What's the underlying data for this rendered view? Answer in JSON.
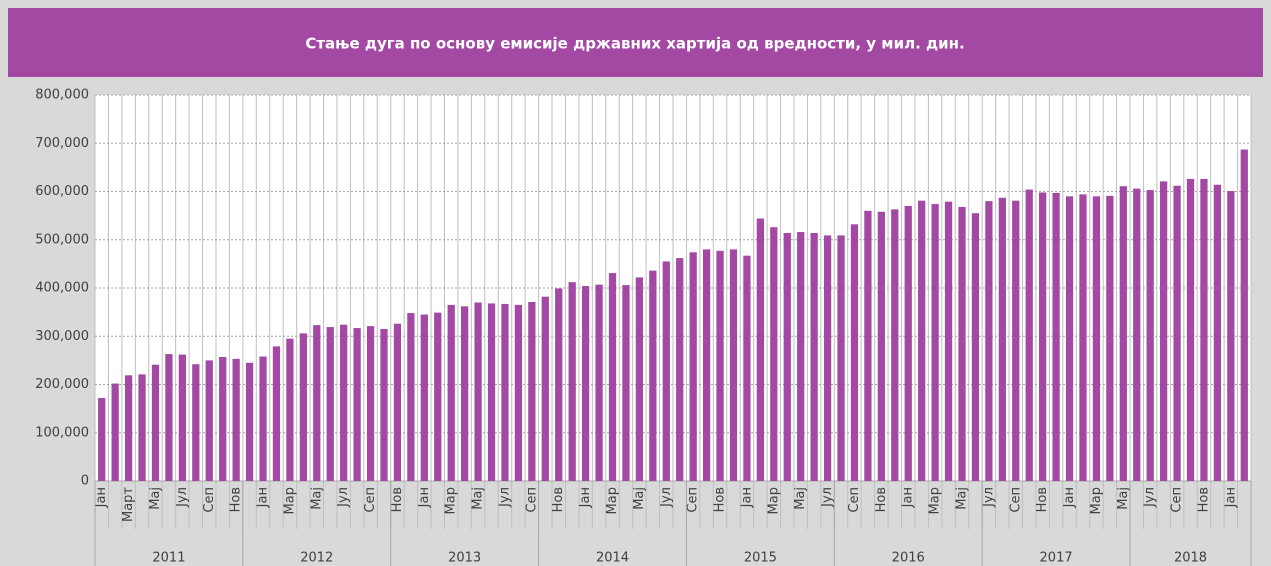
{
  "chart_data": {
    "type": "bar",
    "title": "Стање дуга по основу емисије државних хартија од вредности, у мил. дин.",
    "categories": [
      "Јан",
      null,
      "Март",
      null,
      "Мај",
      null,
      "Јул",
      null,
      "Сеп",
      null,
      "Нов",
      null,
      "Јан",
      null,
      "Мар",
      null,
      "Мај",
      null,
      "Јул",
      null,
      "Сеп",
      null,
      "Нов",
      null,
      "Јан",
      null,
      "Мар",
      null,
      "Мај",
      null,
      "Јул",
      null,
      "Сеп",
      null,
      "Нов",
      null,
      "Јан",
      null,
      "Мар",
      null,
      "Мај",
      null,
      "Јул",
      null,
      "Сеп",
      null,
      "Нов",
      null,
      "Јан",
      null,
      "Мар",
      null,
      "Мај",
      null,
      "Јул",
      null,
      "Сеп",
      null,
      "Нов",
      null,
      "Јан",
      null,
      "Мар",
      null,
      "Мај",
      null,
      "Јул",
      null,
      "Сеп",
      null,
      "Нов",
      null,
      "Јан",
      null,
      "Мар",
      null,
      "Мај",
      null,
      "Јул",
      null,
      "Сеп",
      null,
      "Нов",
      null,
      "Јан",
      null
    ],
    "years": [
      "2011",
      "2012",
      "2013",
      "2014",
      "2015",
      "2016",
      "2017",
      "2018"
    ],
    "values": [
      172000,
      202000,
      219000,
      221000,
      241000,
      263000,
      262000,
      242000,
      250000,
      257000,
      253000,
      245000,
      258000,
      279000,
      295000,
      306000,
      323000,
      319000,
      324000,
      317000,
      321000,
      315000,
      326000,
      348000,
      345000,
      349000,
      365000,
      362000,
      370000,
      368000,
      367000,
      365000,
      371000,
      382000,
      399000,
      412000,
      404000,
      407000,
      431000,
      406000,
      422000,
      436000,
      455000,
      462000,
      474000,
      480000,
      477000,
      480000,
      467000,
      544000,
      526000,
      514000,
      516000,
      514000,
      509000,
      509000,
      532000,
      560000,
      558000,
      563000,
      570000,
      581000,
      574000,
      579000,
      568000,
      555000,
      580000,
      587000,
      581000,
      604000,
      598000,
      597000,
      590000,
      594000,
      590000,
      591000,
      611000,
      606000,
      603000,
      621000,
      612000,
      626000,
      626000,
      614000,
      601000,
      687000
    ],
    "color": "#a349a4",
    "ylim": [
      0,
      800000
    ],
    "yticks": [
      0,
      {
        "value": 100000,
        "label": "100,000"
      },
      {
        "value": 200000,
        "label": "200,000"
      },
      {
        "value": 300000,
        "label": "300,000"
      },
      {
        "value": 400000,
        "label": "400,000"
      },
      {
        "value": 500000,
        "label": "500,000"
      },
      {
        "value": 600000,
        "label": "600,000"
      },
      {
        "value": 700000,
        "label": "700,000"
      },
      {
        "value": 800000,
        "label": "800,000"
      }
    ],
    "grid": true
  }
}
